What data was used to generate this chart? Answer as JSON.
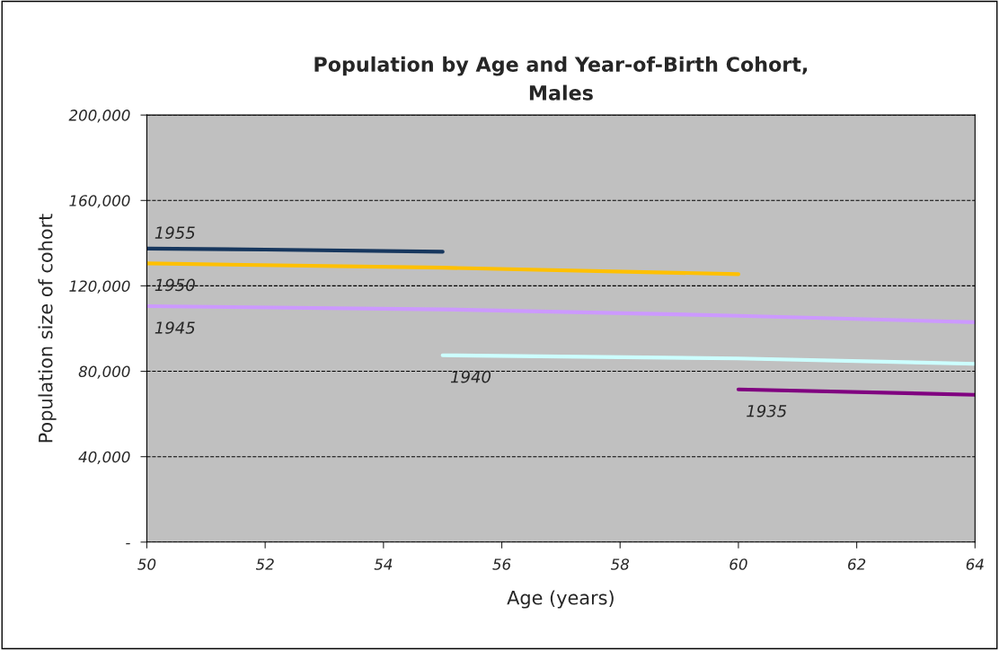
{
  "chart_data": {
    "type": "line",
    "title": "Population by Age and Year-of-Birth Cohort,\nMales",
    "xlabel": "Age (years)",
    "ylabel": "Population size of cohort",
    "xlim": [
      50,
      64
    ],
    "xticks": [
      50,
      52,
      54,
      56,
      58,
      60,
      62,
      64
    ],
    "ylim": [
      0,
      200000
    ],
    "yticks": [
      {
        "value": 0,
        "label": "-"
      },
      {
        "value": 40000,
        "label": "40,000"
      },
      {
        "value": 80000,
        "label": "80,000"
      },
      {
        "value": 120000,
        "label": "120,000"
      },
      {
        "value": 160000,
        "label": "160,000"
      },
      {
        "value": 200000,
        "label": "200,000"
      }
    ],
    "grid": "y",
    "legend": false,
    "series": [
      {
        "name": "1955",
        "color": "#17375e",
        "x": [
          50,
          52,
          55
        ],
        "values": [
          137500,
          137000,
          136000
        ]
      },
      {
        "name": "1950",
        "color": "#ffc000",
        "x": [
          50,
          55,
          60
        ],
        "values": [
          130500,
          128500,
          125500
        ]
      },
      {
        "name": "1945",
        "color": "#cc99ff",
        "x": [
          50,
          55,
          60,
          64
        ],
        "values": [
          110500,
          109000,
          106000,
          103000
        ]
      },
      {
        "name": "1940",
        "color": "#ccffff",
        "x": [
          55,
          60,
          64
        ],
        "values": [
          87500,
          86000,
          83500
        ]
      },
      {
        "name": "1935",
        "color": "#800080",
        "x": [
          60,
          64
        ],
        "values": [
          71500,
          69000
        ]
      }
    ]
  }
}
